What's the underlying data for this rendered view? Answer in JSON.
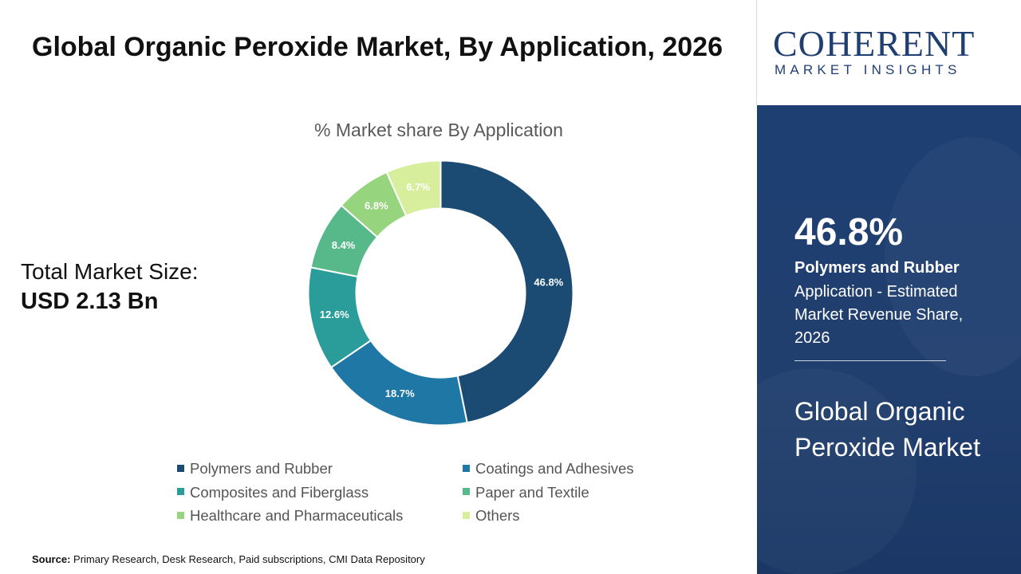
{
  "header": {
    "title": "Global Organic Peroxide Market, By Application, 2026"
  },
  "total": {
    "label": "Total Market Size:",
    "value": "USD 2.13 Bn"
  },
  "source": {
    "prefix": "Source:",
    "text": "Primary Research, Desk Research, Paid subscriptions, CMI Data Repository"
  },
  "logo": {
    "word": "COHERENT",
    "sub": "MARKET INSIGHTS"
  },
  "panel": {
    "percent": "46.8%",
    "application": "Polymers and Rubber",
    "description": "Application - Estimated Market Revenue Share, 2026",
    "market": "Global Organic Peroxide Market"
  },
  "chart_data": {
    "type": "pie",
    "title": "% Market share By Application",
    "categories": [
      "Polymers and Rubber",
      "Coatings and Adhesives",
      "Composites and Fiberglass",
      "Paper and Textile",
      "Healthcare and Pharmaceuticals",
      "Others"
    ],
    "values": [
      46.8,
      18.7,
      12.6,
      8.4,
      6.8,
      6.7
    ],
    "value_labels": [
      "46.8%",
      "18.7%",
      "12.6%",
      "8.4%",
      "6.8%",
      "6.7%"
    ],
    "colors": [
      "#1b4b73",
      "#1f77a6",
      "#2a9d9a",
      "#57b98a",
      "#97d47e",
      "#d7ee9c"
    ],
    "label_colors": [
      "#ffffff",
      "#ffffff",
      "#ffffff",
      "#ffffff",
      "#ffffff",
      "#ffffff"
    ],
    "donut": true,
    "legend_position": "bottom"
  }
}
